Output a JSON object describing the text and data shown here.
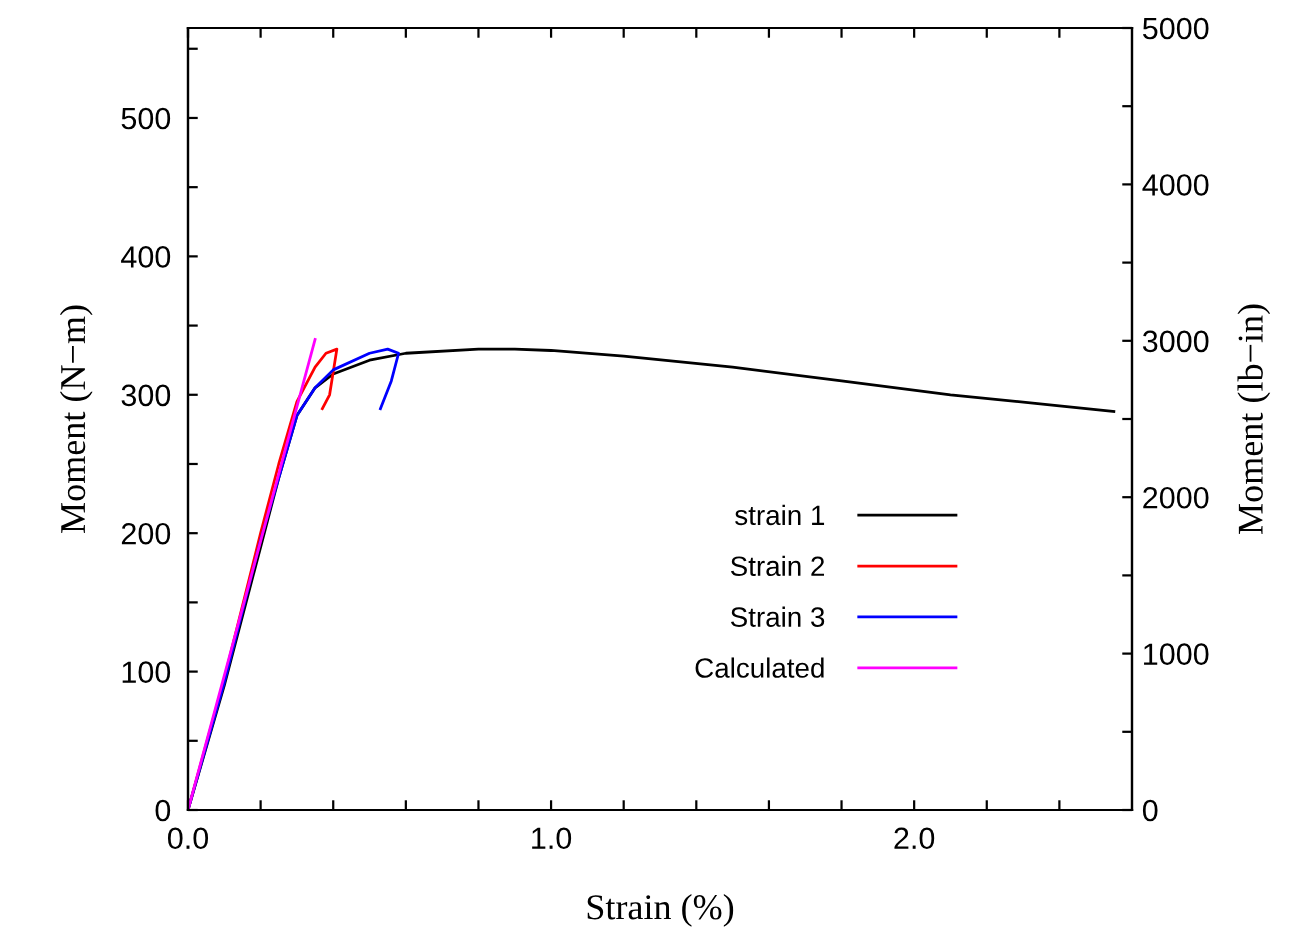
{
  "chart_data": {
    "type": "line",
    "xlabel": "Strain (%)",
    "ylabel": "Moment (N−m)",
    "y2label": "Moment (lb−in)",
    "xlim": [
      0,
      2.6
    ],
    "xticks": [
      {
        "value": 0,
        "label": "0.0"
      },
      {
        "value": 0.2,
        "label": null
      },
      {
        "value": 0.4,
        "label": null
      },
      {
        "value": 0.6,
        "label": null
      },
      {
        "value": 0.8,
        "label": null
      },
      {
        "value": 1,
        "label": "1.0"
      },
      {
        "value": 1.2,
        "label": null
      },
      {
        "value": 1.4,
        "label": null
      },
      {
        "value": 1.6,
        "label": null
      },
      {
        "value": 1.8,
        "label": null
      },
      {
        "value": 2,
        "label": "2.0"
      },
      {
        "value": 2.2,
        "label": null
      },
      {
        "value": 2.4,
        "label": null
      }
    ],
    "ylim": [
      0,
      565
    ],
    "yticks": [
      0,
      {
        "value": 50,
        "label": null
      },
      100,
      {
        "value": 150,
        "label": null
      },
      200,
      {
        "value": 250,
        "label": null
      },
      300,
      {
        "value": 350,
        "label": null
      },
      400,
      {
        "value": 450,
        "label": null
      },
      500,
      {
        "value": 550,
        "label": null
      }
    ],
    "y2lim": [
      0,
      5000
    ],
    "y2ticks": [
      0,
      {
        "value": 500,
        "label": null
      },
      1000,
      {
        "value": 1500,
        "label": null
      },
      2000,
      {
        "value": 2500,
        "label": null
      },
      3000,
      {
        "value": 3500,
        "label": null
      },
      4000,
      {
        "value": 4500,
        "label": null
      },
      5000
    ],
    "grid": false,
    "legend": "bottom right",
    "series": [
      {
        "name": "strain 1",
        "color": "#000000",
        "x": [
          0,
          0.1,
          0.2,
          0.25,
          0.3,
          0.35,
          0.4,
          0.5,
          0.6,
          0.8,
          0.9,
          1.0,
          1.2,
          1.5,
          1.8,
          2.1,
          2.4,
          2.55
        ],
        "values": [
          0,
          90,
          190,
          240,
          285,
          305,
          315,
          325,
          330,
          333,
          333,
          332,
          328,
          320,
          310,
          300,
          292,
          288
        ]
      },
      {
        "name": "Strain 2",
        "color": "#ff0000",
        "x": [
          0,
          0.1,
          0.2,
          0.25,
          0.3,
          0.35,
          0.38,
          0.41,
          0.39,
          0.37
        ],
        "values": [
          0,
          95,
          200,
          250,
          295,
          320,
          330,
          333,
          300,
          290
        ]
      },
      {
        "name": "Strain 3",
        "color": "#0000ff",
        "x": [
          0,
          0.1,
          0.2,
          0.3,
          0.35,
          0.4,
          0.5,
          0.55,
          0.58,
          0.56,
          0.53
        ],
        "values": [
          0,
          92,
          195,
          285,
          305,
          318,
          330,
          333,
          330,
          310,
          290
        ]
      },
      {
        "name": "Calculated",
        "color": "#ff00ff",
        "x": [
          0,
          0.35
        ],
        "values": [
          0,
          340
        ]
      }
    ]
  }
}
